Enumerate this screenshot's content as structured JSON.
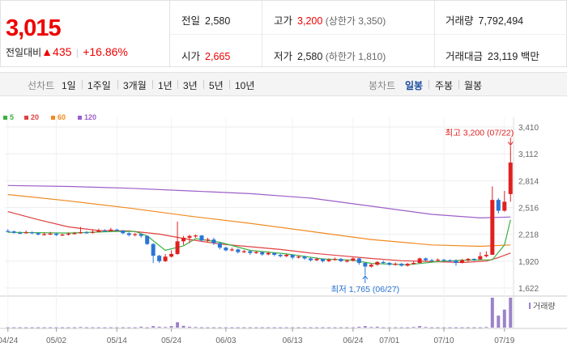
{
  "quote": {
    "price": "3,015",
    "diff_label": "전일대비",
    "diff_arrow": "▲",
    "diff_value": "435",
    "diff_sep": "|",
    "diff_rate": "+16.86%"
  },
  "info": {
    "prev_close": {
      "label": "전일",
      "value": "2,580"
    },
    "high": {
      "label": "고가",
      "value": "3,200",
      "sub": "(상한가 3,350)"
    },
    "volume": {
      "label": "거래량",
      "value": "7,792,494"
    },
    "open": {
      "label": "시가",
      "value": "2,665"
    },
    "low": {
      "label": "저가",
      "value": "2,580",
      "sub": "(하한가 1,810)"
    },
    "amount": {
      "label": "거래대금",
      "value": "23,119",
      "unit": "백만"
    }
  },
  "toolbar": {
    "line_label": "선차트",
    "line_periods": [
      "1일",
      "1주일",
      "3개월",
      "1년",
      "3년",
      "5년",
      "10년"
    ],
    "candle_label": "봉차트",
    "candle_periods": [
      "일봉",
      "주봉",
      "월봉"
    ],
    "candle_active": "일봉"
  },
  "colors": {
    "up": "#e02020",
    "down": "#2a75d6",
    "ma5": "#3cb043",
    "ma20": "#e04040",
    "ma60": "#f08a20",
    "ma120": "#9c5fc8",
    "volume": "#9b82c9"
  },
  "chart_data": {
    "type": "candlestick",
    "title": "",
    "ylim": [
      1622,
      3410
    ],
    "y_ticks": [
      "3,410",
      "3,112",
      "2,814",
      "2,516",
      "2,218",
      "1,920",
      "1,622"
    ],
    "x_ticks": [
      "04/24",
      "05/02",
      "05/14",
      "05/24",
      "06/03",
      "06/13",
      "06/24",
      "07/01",
      "07/10",
      "07/19"
    ],
    "legend": [
      {
        "name": "5",
        "color": "#3cb043"
      },
      {
        "name": "20",
        "color": "#e04040"
      },
      {
        "name": "60",
        "color": "#f08a20"
      },
      {
        "name": "120",
        "color": "#9c5fc8"
      }
    ],
    "annotations": {
      "high": {
        "text": "최고 3,200 (07/22)",
        "value": 3200
      },
      "low": {
        "text": "최저 1,765 (06/27)",
        "value": 1765
      }
    },
    "volume_label": "거래량",
    "candles": [
      [
        2255,
        2250,
        2275,
        2240
      ],
      [
        2250,
        2235,
        2260,
        2225
      ],
      [
        2235,
        2230,
        2250,
        2220
      ],
      [
        2230,
        2240,
        2260,
        2225
      ],
      [
        2240,
        2230,
        2250,
        2220
      ],
      [
        2230,
        2215,
        2240,
        2205
      ],
      [
        2215,
        2220,
        2240,
        2205
      ],
      [
        2220,
        2225,
        2245,
        2210
      ],
      [
        2225,
        2210,
        2235,
        2200
      ],
      [
        2210,
        2215,
        2225,
        2200
      ],
      [
        2215,
        2225,
        2240,
        2205
      ],
      [
        2225,
        2230,
        2245,
        2220
      ],
      [
        2230,
        2240,
        2300,
        2225
      ],
      [
        2240,
        2235,
        2255,
        2225
      ],
      [
        2235,
        2245,
        2270,
        2225
      ],
      [
        2245,
        2260,
        2280,
        2240
      ],
      [
        2260,
        2255,
        2275,
        2245
      ],
      [
        2255,
        2270,
        2290,
        2250
      ],
      [
        2270,
        2260,
        2280,
        2250
      ],
      [
        2260,
        2230,
        2265,
        2220
      ],
      [
        2230,
        2210,
        2240,
        2195
      ],
      [
        2210,
        2220,
        2235,
        2195
      ],
      [
        2220,
        2200,
        2225,
        2180
      ],
      [
        2200,
        2110,
        2205,
        2100
      ],
      [
        2110,
        1980,
        2120,
        1900
      ],
      [
        1980,
        1920,
        1990,
        1900
      ],
      [
        1920,
        1970,
        2000,
        1910
      ],
      [
        1970,
        2000,
        2040,
        1960
      ],
      [
        2000,
        2140,
        2360,
        1990
      ],
      [
        2140,
        2180,
        2200,
        2100
      ],
      [
        2180,
        2200,
        2210,
        2120
      ],
      [
        2200,
        2205,
        2215,
        2180
      ],
      [
        2205,
        2150,
        2210,
        2140
      ],
      [
        2150,
        2160,
        2180,
        2130
      ],
      [
        2160,
        2120,
        2180,
        2100
      ],
      [
        2120,
        2070,
        2130,
        2050
      ],
      [
        2070,
        2040,
        2080,
        2030
      ],
      [
        2040,
        2050,
        2070,
        2030
      ],
      [
        2050,
        2020,
        2060,
        2005
      ],
      [
        2020,
        2030,
        2045,
        2010
      ],
      [
        2030,
        2010,
        2040,
        1990
      ],
      [
        2010,
        2020,
        2035,
        2000
      ],
      [
        2020,
        1995,
        2025,
        1980
      ],
      [
        1995,
        2010,
        2025,
        1985
      ],
      [
        2010,
        1990,
        2015,
        1975
      ],
      [
        1990,
        1975,
        2000,
        1960
      ],
      [
        1975,
        1990,
        2000,
        1965
      ],
      [
        1990,
        1960,
        1995,
        1940
      ],
      [
        1960,
        1970,
        1985,
        1950
      ],
      [
        1970,
        1950,
        1980,
        1935
      ],
      [
        1950,
        1930,
        1960,
        1915
      ],
      [
        1930,
        1945,
        1960,
        1920
      ],
      [
        1945,
        1920,
        1950,
        1905
      ],
      [
        1920,
        1935,
        1950,
        1910
      ],
      [
        1935,
        1945,
        1960,
        1925
      ],
      [
        1945,
        1920,
        1955,
        1910
      ],
      [
        1920,
        1925,
        1940,
        1905
      ],
      [
        1925,
        1950,
        1960,
        1915
      ],
      [
        1950,
        1900,
        1955,
        1880
      ],
      [
        1900,
        1860,
        1905,
        1765
      ],
      [
        1860,
        1880,
        1895,
        1850
      ],
      [
        1880,
        1910,
        1920,
        1870
      ],
      [
        1910,
        1900,
        1925,
        1890
      ],
      [
        1900,
        1880,
        1910,
        1870
      ],
      [
        1880,
        1890,
        1905,
        1870
      ],
      [
        1890,
        1870,
        1900,
        1860
      ],
      [
        1870,
        1890,
        1900,
        1860
      ],
      [
        1890,
        1900,
        1915,
        1880
      ],
      [
        1900,
        1950,
        1960,
        1895
      ],
      [
        1950,
        1930,
        1960,
        1920
      ],
      [
        1930,
        1925,
        1945,
        1915
      ],
      [
        1925,
        1935,
        1950,
        1920
      ],
      [
        1935,
        1930,
        1945,
        1915
      ],
      [
        1930,
        1925,
        1940,
        1910
      ],
      [
        1925,
        1900,
        1940,
        1870
      ],
      [
        1900,
        1930,
        1945,
        1895
      ],
      [
        1930,
        1945,
        1955,
        1915
      ],
      [
        1945,
        1940,
        1950,
        1920
      ],
      [
        1940,
        1975,
        2020,
        1930
      ],
      [
        1975,
        1990,
        2030,
        1960
      ],
      [
        1990,
        2600,
        2750,
        1990
      ],
      [
        2600,
        2480,
        2620,
        2450
      ],
      [
        2480,
        2580,
        2700,
        2470
      ],
      [
        2665,
        3015,
        3200,
        2580
      ]
    ],
    "ma5": [
      [
        0,
        2240
      ],
      [
        10,
        2232
      ],
      [
        18,
        2250
      ],
      [
        21,
        2250
      ],
      [
        23,
        2200
      ],
      [
        26,
        2040
      ],
      [
        29,
        2090
      ],
      [
        31,
        2170
      ],
      [
        35,
        2130
      ],
      [
        40,
        2040
      ],
      [
        46,
        2000
      ],
      [
        52,
        1945
      ],
      [
        57,
        1930
      ],
      [
        60,
        1895
      ],
      [
        66,
        1880
      ],
      [
        71,
        1915
      ],
      [
        75,
        1930
      ],
      [
        80,
        1935
      ],
      [
        82,
        2100
      ],
      [
        83,
        2380
      ]
    ],
    "ma20": [
      [
        0,
        2470
      ],
      [
        5,
        2380
      ],
      [
        10,
        2300
      ],
      [
        15,
        2260
      ],
      [
        20,
        2255
      ],
      [
        25,
        2220
      ],
      [
        30,
        2160
      ],
      [
        35,
        2110
      ],
      [
        40,
        2080
      ],
      [
        45,
        2050
      ],
      [
        50,
        2010
      ],
      [
        55,
        1980
      ],
      [
        60,
        1950
      ],
      [
        65,
        1925
      ],
      [
        70,
        1915
      ],
      [
        75,
        1905
      ],
      [
        79,
        1920
      ],
      [
        81,
        1960
      ],
      [
        83,
        2010
      ]
    ],
    "ma60": [
      [
        0,
        2660
      ],
      [
        10,
        2590
      ],
      [
        20,
        2510
      ],
      [
        30,
        2420
      ],
      [
        40,
        2340
      ],
      [
        50,
        2250
      ],
      [
        60,
        2160
      ],
      [
        70,
        2100
      ],
      [
        78,
        2085
      ],
      [
        83,
        2100
      ]
    ],
    "ma120": [
      [
        0,
        2760
      ],
      [
        10,
        2750
      ],
      [
        20,
        2730
      ],
      [
        30,
        2700
      ],
      [
        40,
        2670
      ],
      [
        50,
        2620
      ],
      [
        60,
        2530
      ],
      [
        70,
        2440
      ],
      [
        78,
        2400
      ],
      [
        83,
        2410
      ]
    ],
    "volume": [
      0.01,
      0.01,
      0.01,
      0.01,
      0.01,
      0.01,
      0.01,
      0.01,
      0.01,
      0.01,
      0.01,
      0.01,
      0.02,
      0.01,
      0.01,
      0.01,
      0.01,
      0.01,
      0.01,
      0.01,
      0.01,
      0.01,
      0.03,
      0.01,
      0.05,
      0.03,
      0.02,
      0.05,
      0.18,
      0.06,
      0.03,
      0.02,
      0.01,
      0.01,
      0.01,
      0.01,
      0.01,
      0.01,
      0.01,
      0.01,
      0.01,
      0.01,
      0.01,
      0.01,
      0.01,
      0.01,
      0.01,
      0.01,
      0.01,
      0.01,
      0.01,
      0.01,
      0.01,
      0.01,
      0.01,
      0.01,
      0.01,
      0.01,
      0.03,
      0.05,
      0.02,
      0.03,
      0.01,
      0.01,
      0.01,
      0.01,
      0.01,
      0.02,
      0.05,
      0.02,
      0.01,
      0.01,
      0.01,
      0.01,
      0.01,
      0.01,
      0.01,
      0.01,
      0.01,
      0.02,
      1.0,
      0.4,
      0.6,
      1.0
    ]
  }
}
